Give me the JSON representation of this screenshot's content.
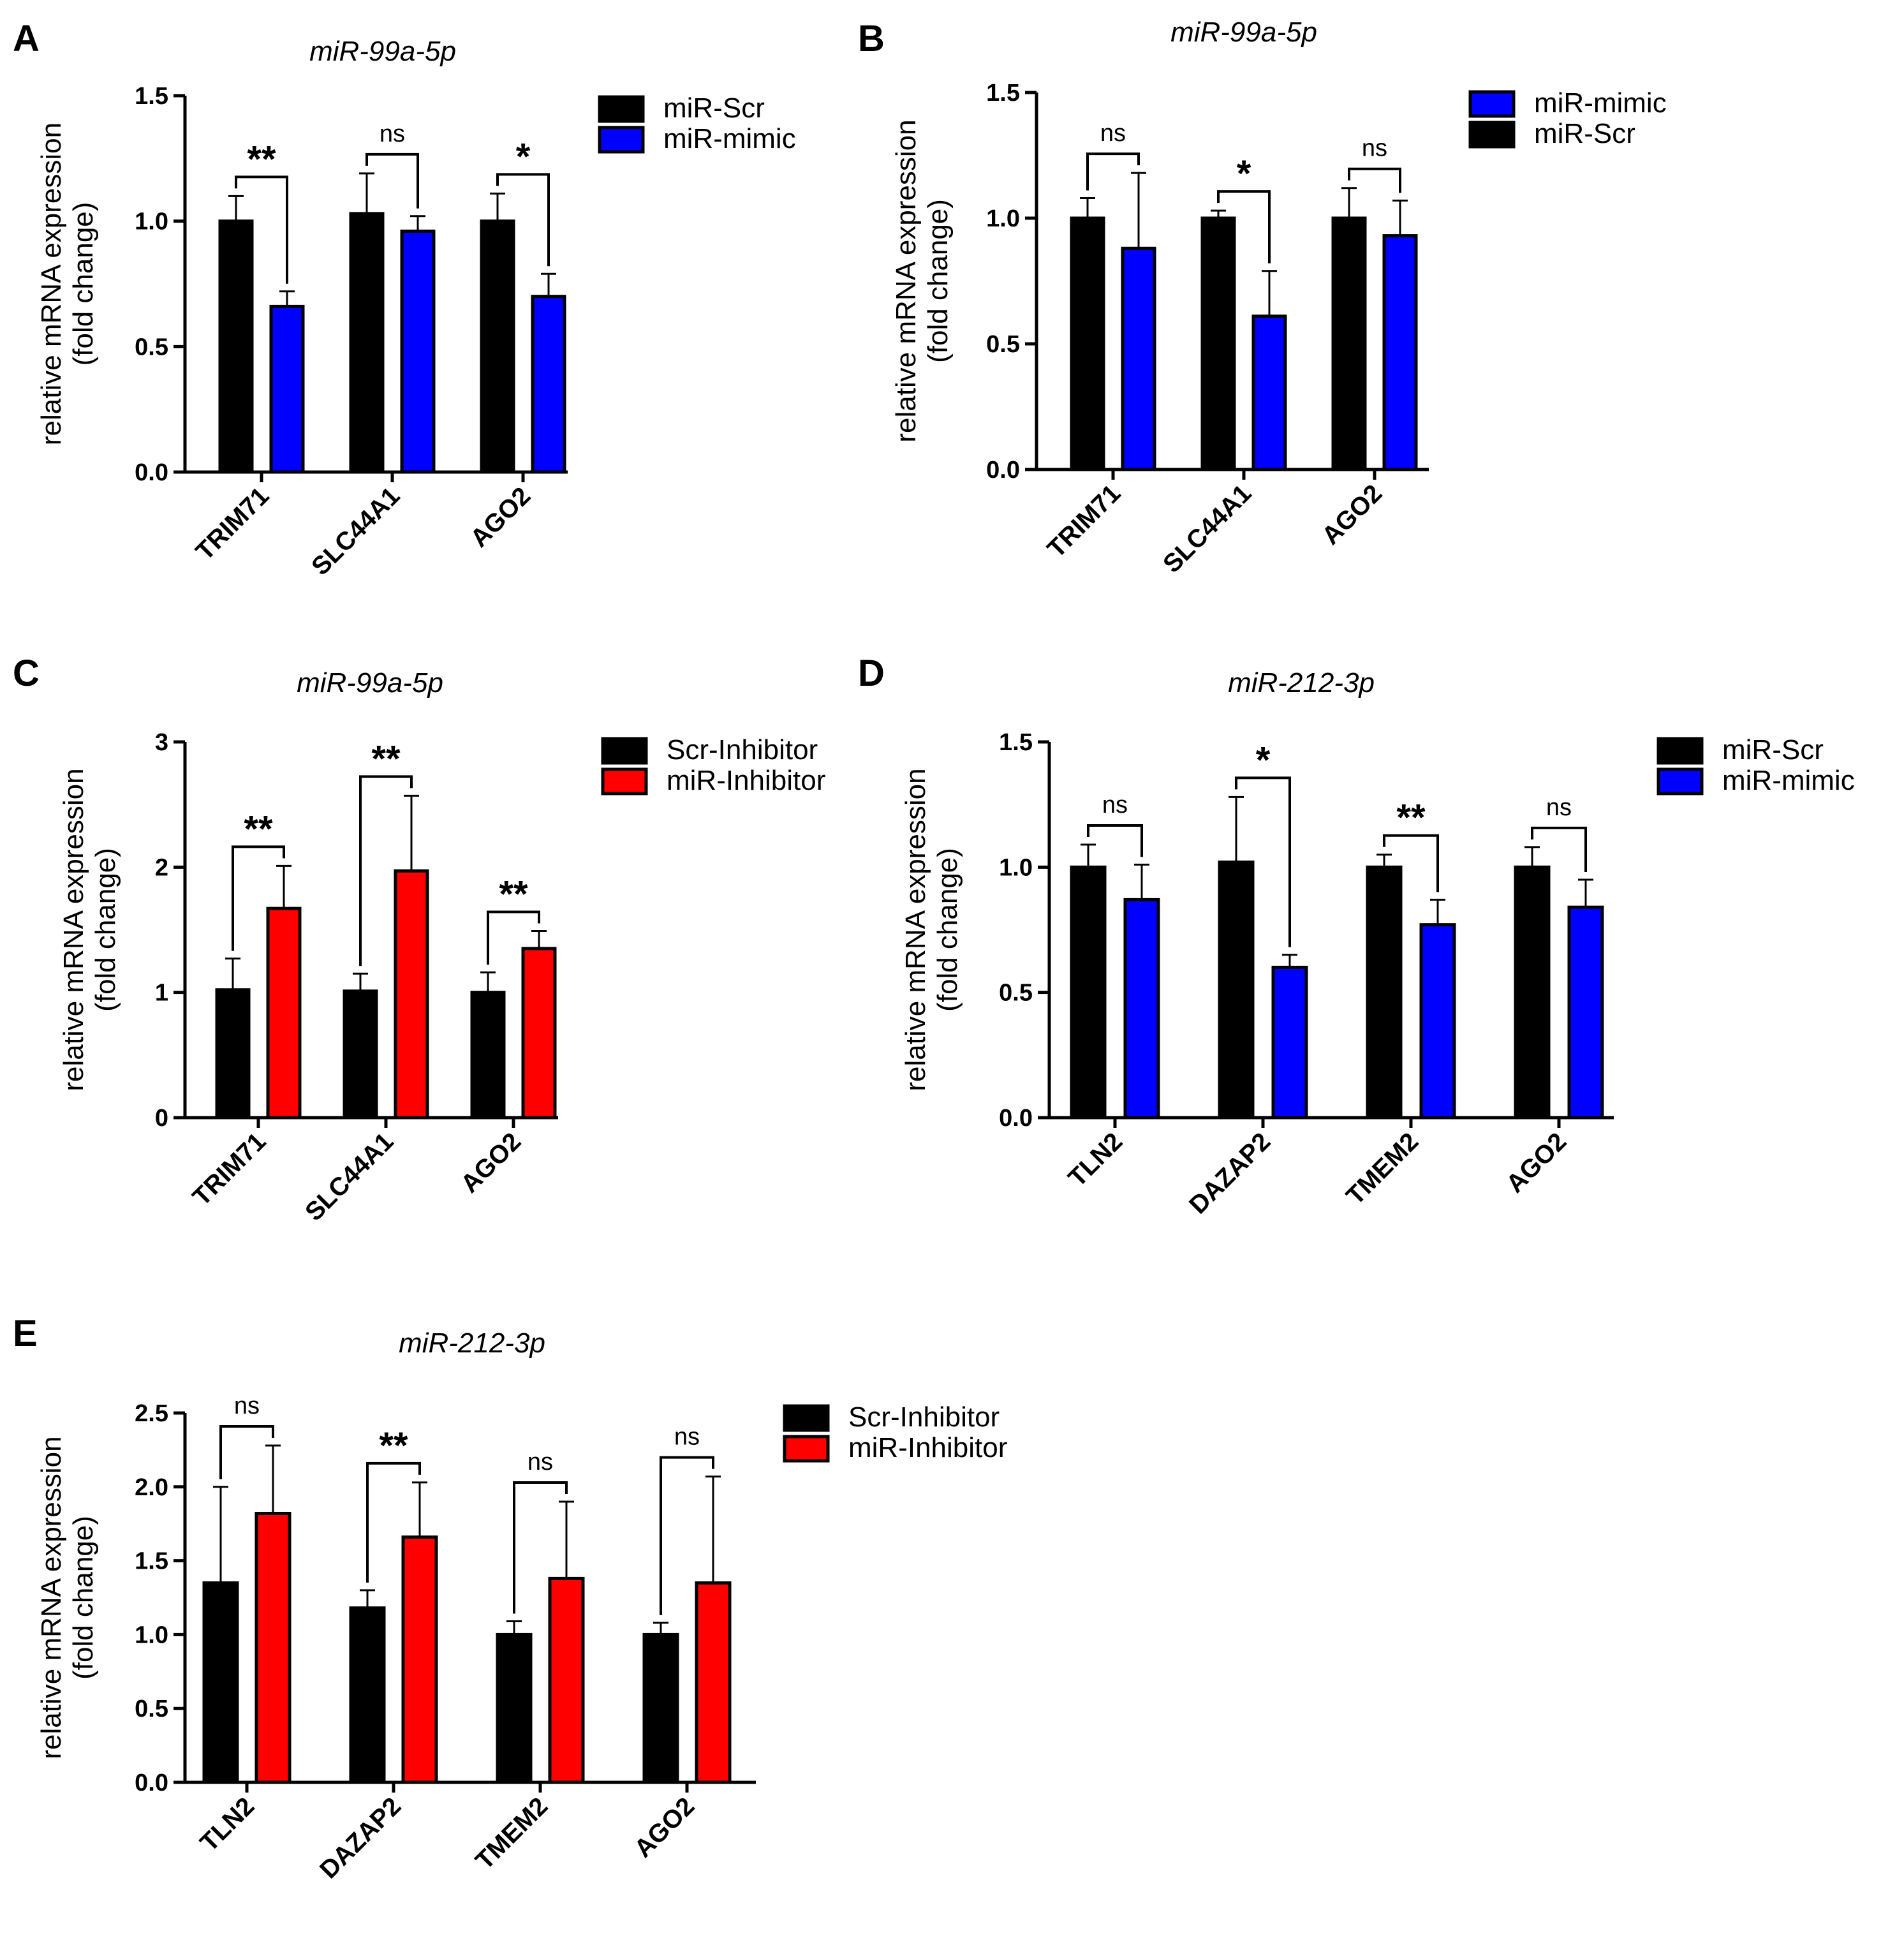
{
  "colors": {
    "black": "#000000",
    "blue": "#0000ff",
    "red": "#ff0000"
  },
  "chart_data": [
    {
      "panel": "A",
      "type": "bar",
      "title": "miR-99a-5p",
      "ylabel": [
        "relative mRNA expression",
        "(fold change)"
      ],
      "xlabel": "",
      "ylim": [
        0,
        1.5
      ],
      "yticks": [
        0.0,
        0.5,
        1.0,
        1.5
      ],
      "ytick_labels": [
        "0.0",
        "0.5",
        "1.0",
        "1.5"
      ],
      "categories": [
        "TRIM71",
        "SLC44A1",
        "AGO2"
      ],
      "series": [
        {
          "name": "miR-Scr",
          "color": "#000000",
          "values": [
            1.0,
            1.03,
            1.0
          ],
          "errors": [
            0.1,
            0.16,
            0.11
          ]
        },
        {
          "name": "miR-mimic",
          "color": "#0000ff",
          "values": [
            0.66,
            0.96,
            0.7
          ],
          "errors": [
            0.06,
            0.06,
            0.09
          ]
        }
      ],
      "significance": [
        "**",
        "ns",
        "*"
      ],
      "legend": "right",
      "legend_order": [
        0,
        1
      ]
    },
    {
      "panel": "B",
      "type": "bar",
      "title": "miR-99a-5p",
      "ylabel": [
        "relative mRNA expression",
        "(fold change)"
      ],
      "xlabel": "",
      "ylim": [
        0,
        1.5
      ],
      "yticks": [
        0.0,
        0.5,
        1.0,
        1.5
      ],
      "ytick_labels": [
        "0.0",
        "0.5",
        "1.0",
        "1.5"
      ],
      "categories": [
        "TRIM71",
        "SLC44A1",
        "AGO2"
      ],
      "series": [
        {
          "name": "miR-Scr",
          "color": "#000000",
          "values": [
            1.0,
            1.0,
            1.0
          ],
          "errors": [
            0.08,
            0.03,
            0.12
          ]
        },
        {
          "name": "miR-mimic",
          "color": "#0000ff",
          "values": [
            0.88,
            0.61,
            0.93
          ],
          "errors": [
            0.3,
            0.18,
            0.14
          ]
        }
      ],
      "significance": [
        "ns",
        "*",
        "ns"
      ],
      "legend": "right",
      "legend_order": [
        1,
        0
      ]
    },
    {
      "panel": "C",
      "type": "bar",
      "title": "miR-99a-5p",
      "ylabel": [
        "relative mRNA expression",
        "(fold change)"
      ],
      "xlabel": "",
      "ylim": [
        0,
        3
      ],
      "yticks": [
        0,
        1,
        2,
        3
      ],
      "ytick_labels": [
        "0",
        "1",
        "2",
        "3"
      ],
      "categories": [
        "TRIM71",
        "SLC44A1",
        "AGO2"
      ],
      "series": [
        {
          "name": "Scr-Inhibitor",
          "color": "#000000",
          "values": [
            1.02,
            1.01,
            1.0
          ],
          "errors": [
            0.25,
            0.14,
            0.16
          ]
        },
        {
          "name": "miR-Inhibitor",
          "color": "#ff0000",
          "values": [
            1.67,
            1.97,
            1.35
          ],
          "errors": [
            0.34,
            0.6,
            0.14
          ]
        }
      ],
      "significance": [
        "**",
        "**",
        "**"
      ],
      "legend": "right",
      "legend_order": [
        0,
        1
      ]
    },
    {
      "panel": "D",
      "type": "bar",
      "title": "miR-212-3p",
      "ylabel": [
        "relative mRNA expression",
        "(fold change)"
      ],
      "xlabel": "",
      "ylim": [
        0,
        1.5
      ],
      "yticks": [
        0.0,
        0.5,
        1.0,
        1.5
      ],
      "ytick_labels": [
        "0.0",
        "0.5",
        "1.0",
        "1.5"
      ],
      "categories": [
        "TLN2",
        "DAZAP2",
        "TMEM2",
        "AGO2"
      ],
      "series": [
        {
          "name": "miR-Scr",
          "color": "#000000",
          "values": [
            1.0,
            1.02,
            1.0,
            1.0
          ],
          "errors": [
            0.09,
            0.26,
            0.05,
            0.08
          ]
        },
        {
          "name": "miR-mimic",
          "color": "#0000ff",
          "values": [
            0.87,
            0.6,
            0.77,
            0.84
          ],
          "errors": [
            0.14,
            0.05,
            0.1,
            0.11
          ]
        }
      ],
      "significance": [
        "ns",
        "*",
        "**",
        "ns"
      ],
      "legend": "right",
      "legend_order": [
        0,
        1
      ]
    },
    {
      "panel": "E",
      "type": "bar",
      "title": "miR-212-3p",
      "ylabel": [
        "relative mRNA expression",
        "(fold change)"
      ],
      "xlabel": "",
      "ylim": [
        0,
        2.5
      ],
      "yticks": [
        0.0,
        0.5,
        1.0,
        1.5,
        2.0,
        2.5
      ],
      "ytick_labels": [
        "0.0",
        "0.5",
        "1.0",
        "1.5",
        "2.0",
        "2.5"
      ],
      "categories": [
        "TLN2",
        "DAZAP2",
        "TMEM2",
        "AGO2"
      ],
      "series": [
        {
          "name": "Scr-Inhibitor",
          "color": "#000000",
          "values": [
            1.35,
            1.18,
            1.0,
            1.0
          ],
          "errors": [
            0.65,
            0.12,
            0.09,
            0.08
          ]
        },
        {
          "name": "miR-Inhibitor",
          "color": "#ff0000",
          "values": [
            1.82,
            1.66,
            1.38,
            1.35
          ],
          "errors": [
            0.46,
            0.37,
            0.52,
            0.72
          ]
        }
      ],
      "significance": [
        "ns",
        "**",
        "ns",
        "ns"
      ],
      "legend": "right",
      "legend_order": [
        0,
        1
      ]
    }
  ]
}
